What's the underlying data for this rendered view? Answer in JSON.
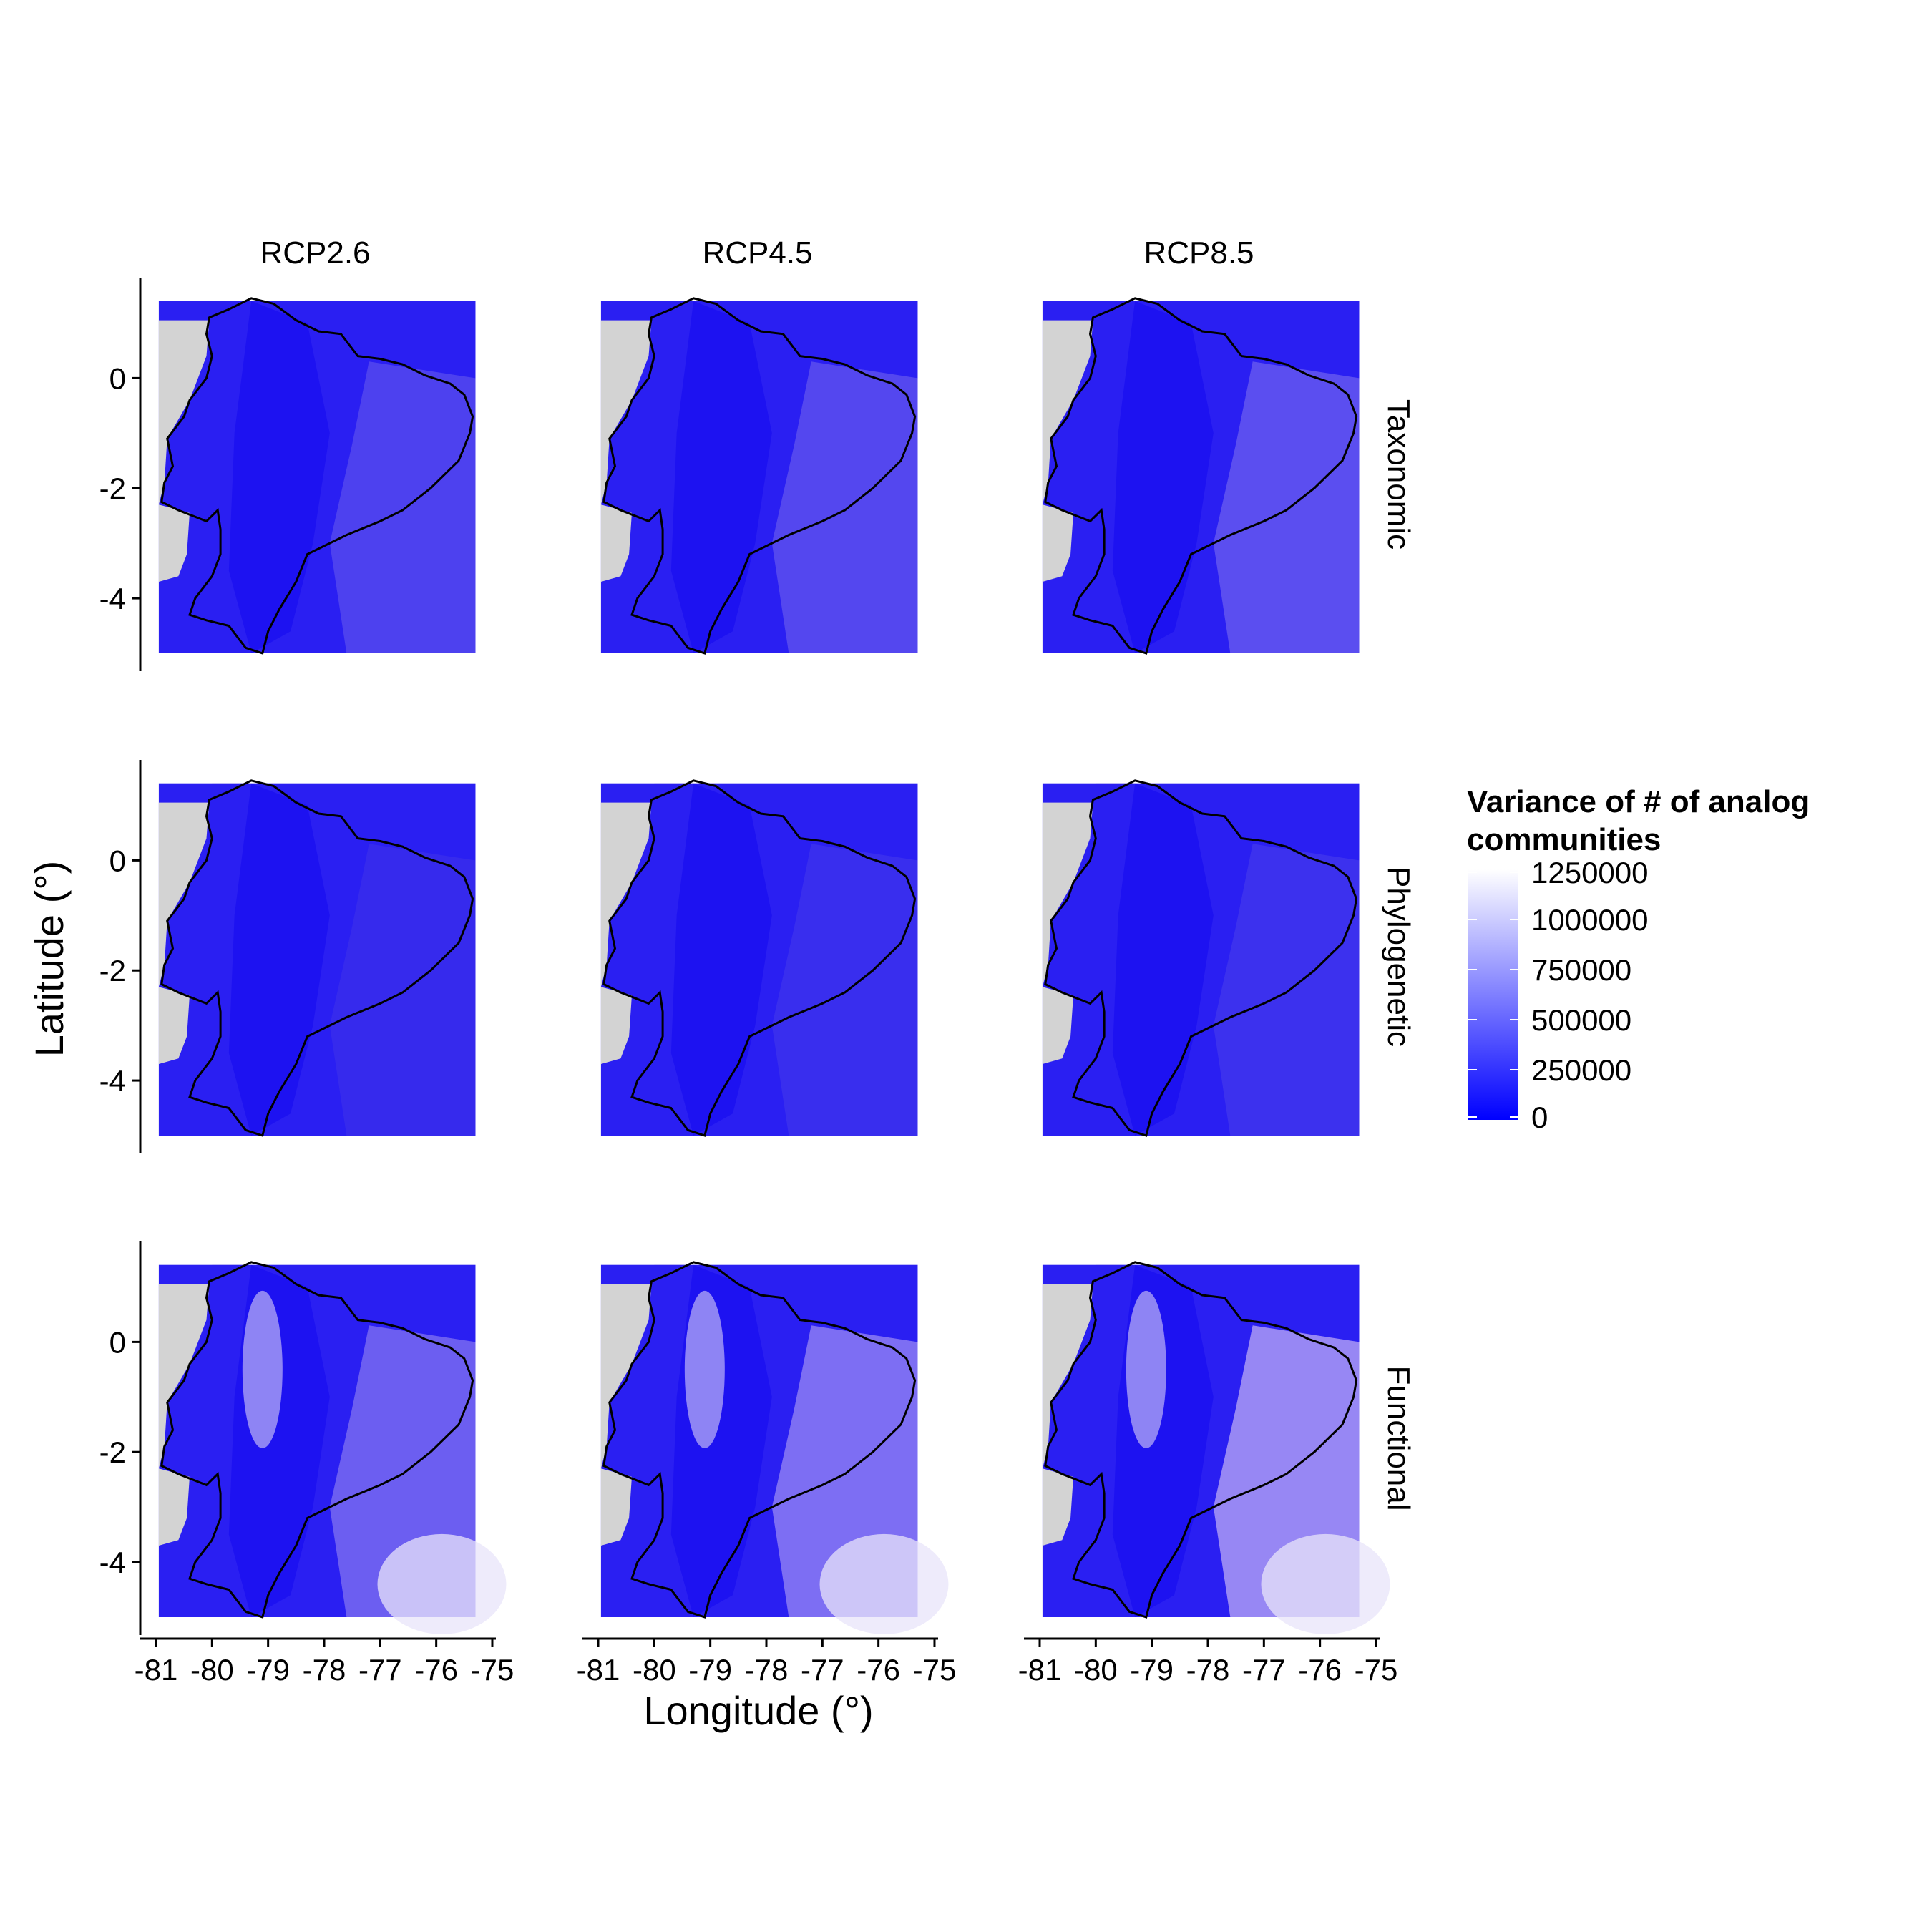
{
  "chart_data": {
    "type": "heatmap",
    "description_axes": {
      "xlabel": "Longitude (°)",
      "ylabel": "Latitude (°)"
    },
    "xlabel": "Longitude (°)",
    "ylabel": "Latitude (°)",
    "xlim": [
      -81,
      -75
    ],
    "ylim": [
      -5,
      1.5
    ],
    "x_ticks": [
      "-81",
      "-80",
      "-79",
      "-78",
      "-77",
      "-76",
      "-75"
    ],
    "y_ticks": [
      "0",
      "-2",
      "-4"
    ],
    "columns": [
      "RCP2.6",
      "RCP4.5",
      "RCP8.5"
    ],
    "rows": [
      "Taxonomic",
      "Phylogenetic",
      "Functional"
    ],
    "legend": {
      "title": "Variance of # of analog communities",
      "title_lines": [
        "Variance of # of analog",
        "communities"
      ],
      "placement": "right",
      "labels": [
        "1250000",
        "1000000",
        "750000",
        "500000",
        "250000",
        "0"
      ],
      "values": [
        1250000,
        1000000,
        750000,
        500000,
        250000,
        0
      ],
      "color_low": "#0000ff",
      "color_high": "#ffffff"
    },
    "na_color": "#d3d3d3",
    "panels_approx_level": {
      "Taxonomic": {
        "RCP2.6": 150000,
        "RCP4.5": 180000,
        "RCP8.5": 220000
      },
      "Phylogenetic": {
        "RCP2.6": 120000,
        "RCP4.5": 160000,
        "RCP8.5": 170000
      },
      "Functional": {
        "RCP2.6": 350000,
        "RCP4.5": 400000,
        "RCP8.5": 500000
      }
    }
  }
}
